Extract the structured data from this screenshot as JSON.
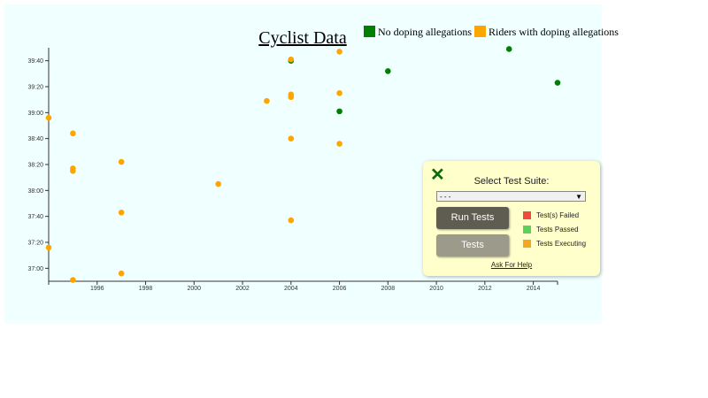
{
  "chart_data": {
    "type": "scatter",
    "title": "Cyclist Data",
    "xlabel": "",
    "ylabel": "",
    "xlim": [
      1994,
      2015
    ],
    "ylim": [
      "36:50",
      "39:50"
    ],
    "x_ticks": [
      "1996",
      "1998",
      "2000",
      "2002",
      "2004",
      "2006",
      "2008",
      "2010",
      "2012",
      "2014"
    ],
    "y_ticks": [
      "37:00",
      "37:20",
      "37:40",
      "38:00",
      "38:20",
      "38:40",
      "39:00",
      "39:20",
      "39:40"
    ],
    "legend": {
      "placement": "top-right",
      "entries": [
        {
          "label": "No doping allegations",
          "color": "#008000"
        },
        {
          "label": "Riders with doping allegations",
          "color": "#ffa500"
        }
      ]
    },
    "series": [
      {
        "name": "No doping allegations",
        "color": "#008000",
        "points": [
          [
            2004,
            "39:40"
          ],
          [
            2006,
            "39:01"
          ],
          [
            2008,
            "39:32"
          ],
          [
            2013,
            "39:49"
          ],
          [
            2015,
            "39:23"
          ]
        ]
      },
      {
        "name": "Riders with doping allegations",
        "color": "#ffa500",
        "points": [
          [
            1994,
            "38:56"
          ],
          [
            1994,
            "37:16"
          ],
          [
            1995,
            "38:44"
          ],
          [
            1995,
            "38:17"
          ],
          [
            1995,
            "38:15"
          ],
          [
            1995,
            "36:51"
          ],
          [
            1997,
            "38:22"
          ],
          [
            1997,
            "37:43"
          ],
          [
            1997,
            "36:56"
          ],
          [
            2001,
            "38:05"
          ],
          [
            2003,
            "39:09"
          ],
          [
            2004,
            "39:41"
          ],
          [
            2004,
            "39:14"
          ],
          [
            2004,
            "39:12"
          ],
          [
            2004,
            "38:40"
          ],
          [
            2004,
            "37:37"
          ],
          [
            2006,
            "39:47"
          ],
          [
            2006,
            "39:15"
          ],
          [
            2006,
            "38:36"
          ]
        ]
      }
    ]
  },
  "panel": {
    "close_icon": "x-icon",
    "select_label": "Select Test Suite:",
    "select_value": "- - -",
    "run_label": "Run Tests",
    "tests_label": "Tests",
    "legend": [
      {
        "label": "Test(s) Failed",
        "color": "#ee4b3b"
      },
      {
        "label": "Tests Passed",
        "color": "#5ad15a"
      },
      {
        "label": "Tests Executing",
        "color": "#f5a623"
      }
    ],
    "help_label": "Ask For Help"
  }
}
